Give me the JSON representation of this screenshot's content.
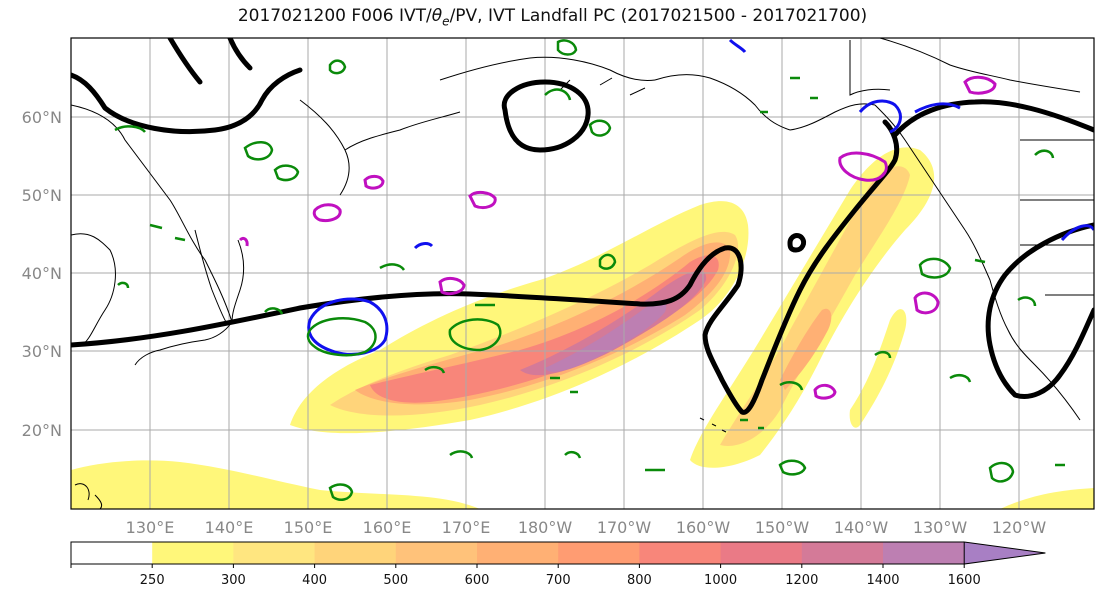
{
  "title": {
    "prefix": "2017021200 F006 IVT/",
    "theta": "θ",
    "sub": "e",
    "suffix": "/PV, IVT Landfall PC (2017021500 - 2017021700)"
  },
  "map": {
    "lat_labels": [
      "60°N",
      "50°N",
      "40°N",
      "30°N",
      "20°N"
    ],
    "lon_labels": [
      "130°E",
      "140°E",
      "150°E",
      "160°E",
      "170°E",
      "180°W",
      "170°W",
      "160°W",
      "150°W",
      "140°W",
      "130°W",
      "120°W"
    ]
  },
  "colorbar": {
    "ticks": [
      "250",
      "300",
      "400",
      "500",
      "600",
      "700",
      "800",
      "1000",
      "1200",
      "1400",
      "1600"
    ],
    "colors": [
      "#ffffff",
      "#fff77a",
      "#ffe680",
      "#ffd47a",
      "#ffc27a",
      "#ffb074",
      "#ff9c72",
      "#f8867a",
      "#ea7a86",
      "#d47a98",
      "#bd7fb2",
      "#a87fc4"
    ]
  },
  "contour_colors": {
    "theta_e": "#000000",
    "pv_green": "#0a8a0a",
    "pv_blue": "#1010ee",
    "pv_magenta": "#c010c0"
  }
}
